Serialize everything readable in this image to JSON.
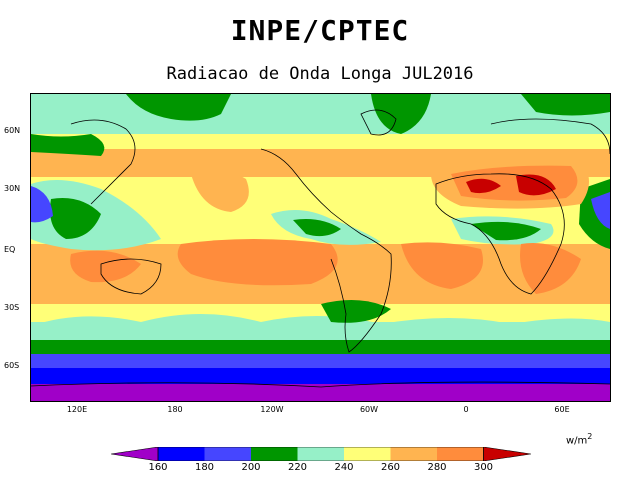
{
  "header": {
    "org": "INPE/CPTEC",
    "subtitle": "Radiacao de Onda Longa JUL2016"
  },
  "axes": {
    "lat_labels": [
      "60N",
      "30N",
      "EQ",
      "30S",
      "60S"
    ],
    "lon_labels": [
      "120E",
      "180",
      "120W",
      "60W",
      "0",
      "60E"
    ]
  },
  "legend": {
    "units": "w/m",
    "units_exp": "2",
    "ticks": [
      "160",
      "180",
      "200",
      "220",
      "240",
      "260",
      "280",
      "300"
    ],
    "colors": {
      "lt160": "#a000c8",
      "c160": "#0000ff",
      "c180": "#4646ff",
      "c200": "#009600",
      "c220": "#96f0c8",
      "c240": "#ffff78",
      "c260": "#ffb450",
      "c280": "#ff8c3c",
      "c300": "#c80000"
    }
  }
}
